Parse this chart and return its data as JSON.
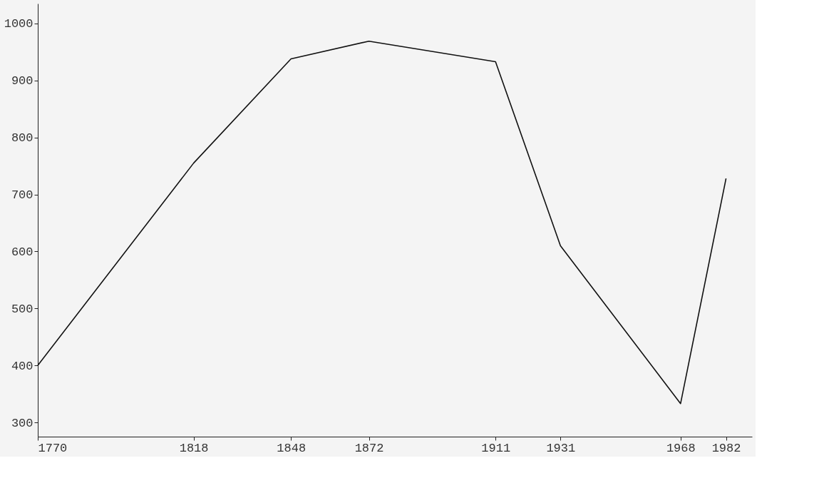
{
  "chart_data": {
    "type": "line",
    "x": [
      1770,
      1818,
      1848,
      1872,
      1911,
      1931,
      1968,
      1982
    ],
    "series": [
      {
        "color": "#111111",
        "values": [
          400,
          755,
          938,
          969,
          933,
          610,
          333,
          728
        ]
      }
    ],
    "xlim": [
      1770,
      1990
    ],
    "xticks": [
      1770,
      1818,
      1848,
      1872,
      1911,
      1931,
      1968,
      1982
    ],
    "ylim": [
      275,
      1035
    ],
    "yticks": [
      300,
      400,
      500,
      600,
      700,
      800,
      900,
      1000
    ],
    "grid": false,
    "legend": false,
    "marker": "none",
    "line_style": "solid"
  }
}
